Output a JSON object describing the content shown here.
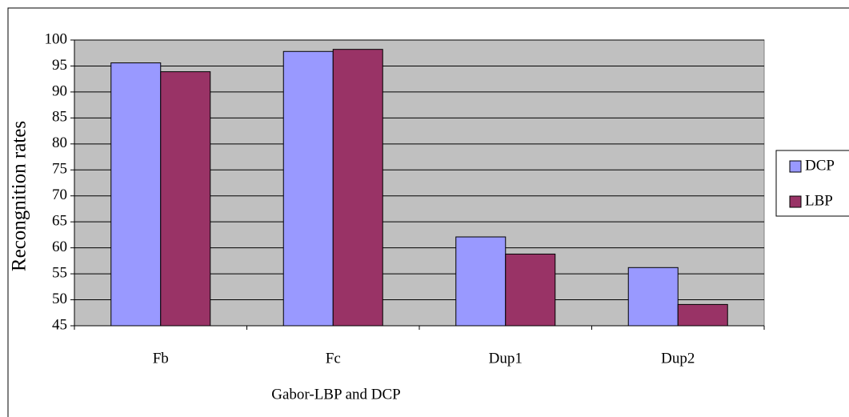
{
  "chart_data": {
    "type": "bar",
    "x_label": "Gabor-LBP and DCP",
    "y_label": "Recongnition rates",
    "categories": [
      "Fb",
      "Fc",
      "Dup1",
      "Dup2"
    ],
    "series": [
      {
        "name": "DCP",
        "color": "#9999ff",
        "values": [
          95.6,
          97.8,
          62.1,
          56.2
        ]
      },
      {
        "name": "LBP",
        "color": "#993366",
        "values": [
          93.9,
          98.2,
          58.8,
          49.1
        ]
      }
    ],
    "ylim": [
      45,
      100
    ],
    "yticks": [
      45,
      50,
      55,
      60,
      65,
      70,
      75,
      80,
      85,
      90,
      95,
      100
    ],
    "grid": true,
    "legend": "right",
    "background": "#c0c0c0"
  }
}
